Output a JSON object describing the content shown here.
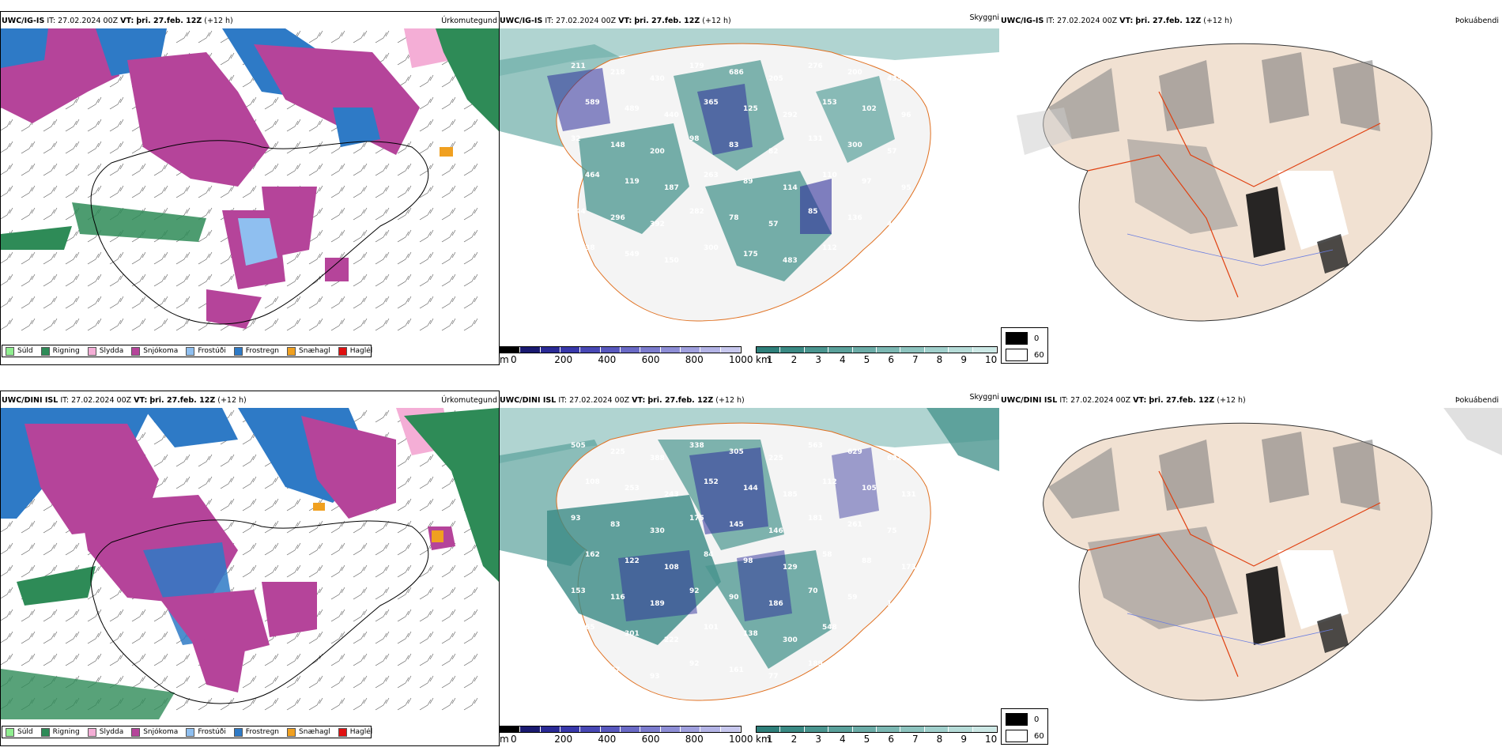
{
  "rows": [
    {
      "row_id": "igis",
      "panels": {
        "precip": {
          "model": "UWC/IG-IS",
          "it_label": "IT:",
          "it_value": "27.02.2024 00Z",
          "vt_label": "VT:",
          "vt_value": "þri. 27.feb. 12Z",
          "lead": "(+12 h)",
          "title": "Úrkomutegund"
        },
        "visibility": {
          "model": "UWC/IG-IS",
          "it_label": "IT:",
          "it_value": "27.02.2024 00Z",
          "vt_label": "VT:",
          "vt_value": "þri. 27.feb. 12Z",
          "lead": "(+12 h)",
          "title": "Skyggni",
          "numbers": [
            "211",
            "218",
            "430",
            "179",
            "686",
            "205",
            "276",
            "200",
            "433",
            "589",
            "489",
            "440",
            "365",
            "125",
            "292",
            "153",
            "102",
            "96",
            "32",
            "148",
            "200",
            "98",
            "83",
            "82",
            "131",
            "300",
            "57",
            "464",
            "119",
            "187",
            "263",
            "89",
            "114",
            "110",
            "97",
            "95",
            "144",
            "296",
            "392",
            "282",
            "78",
            "57",
            "85",
            "136",
            "430",
            "38",
            "549",
            "150",
            "300",
            "175",
            "483",
            "112",
            "100",
            "66"
          ]
        },
        "fog": {
          "model": "UWC/IG-IS",
          "it_label": "IT:",
          "it_value": "27.02.2024 00Z",
          "vt_label": "VT:",
          "vt_value": "þri. 27.feb. 12Z",
          "lead": "(+12 h)",
          "title": "Þokuábendi"
        }
      }
    },
    {
      "row_id": "dini",
      "panels": {
        "precip": {
          "model": "UWC/DINI ISL",
          "it_label": "IT:",
          "it_value": "27.02.2024 00Z",
          "vt_label": "VT:",
          "vt_value": "þri. 27.feb. 12Z",
          "lead": "(+12 h)",
          "title": "Úrkomutegund"
        },
        "visibility": {
          "model": "UWC/DINI ISL",
          "it_label": "IT:",
          "it_value": "27.02.2024 00Z",
          "vt_label": "VT:",
          "vt_value": "þri. 27.feb. 12Z",
          "lead": "(+12 h)",
          "title": "Skyggni",
          "numbers": [
            "505",
            "225",
            "388",
            "338",
            "305",
            "225",
            "563",
            "629",
            "692",
            "108",
            "253",
            "243",
            "152",
            "144",
            "185",
            "112",
            "105",
            "131",
            "93",
            "83",
            "330",
            "175",
            "145",
            "146",
            "181",
            "261",
            "75",
            "162",
            "122",
            "108",
            "84",
            "98",
            "129",
            "58",
            "88",
            "173",
            "153",
            "116",
            "189",
            "92",
            "90",
            "186",
            "70",
            "59",
            "195",
            "65",
            "301",
            "222",
            "101",
            "138",
            "300",
            "548",
            "166",
            "108",
            "52",
            "67",
            "93",
            "92",
            "161",
            "77",
            "189",
            "226"
          ]
        },
        "fog": {
          "model": "UWC/DINI ISL",
          "it_label": "IT:",
          "it_value": "27.02.2024 00Z",
          "vt_label": "VT:",
          "vt_value": "þri. 27.feb. 12Z",
          "lead": "(+12 h)",
          "title": "Þokuábendi"
        }
      }
    }
  ],
  "precip_legend": [
    {
      "label": "Súld",
      "color": "#90ee90"
    },
    {
      "label": "Rigning",
      "color": "#2e8b57"
    },
    {
      "label": "Slydda",
      "color": "#f4aed6"
    },
    {
      "label": "Snjókoma",
      "color": "#b5449a"
    },
    {
      "label": "Frostúði",
      "color": "#8fbff0"
    },
    {
      "label": "Frostregn",
      "color": "#2e7ac6"
    },
    {
      "label": "Snæhagl",
      "color": "#f0a020"
    },
    {
      "label": "Haglél",
      "color": "#e01010"
    }
  ],
  "elev_scale": {
    "unit": "m",
    "ticks": [
      "0",
      "200",
      "400",
      "600",
      "800",
      "1000"
    ],
    "colors": [
      "#000000",
      "#1a1a70",
      "#2a2a95",
      "#3838aa",
      "#4848b5",
      "#5858be",
      "#6a6ac6",
      "#7c7cce",
      "#8e8ed6",
      "#a0a0de",
      "#b4b4e6",
      "#c8c8ee"
    ]
  },
  "vis_scale": {
    "unit": "km",
    "ticks": [
      "1",
      "2",
      "3",
      "4",
      "5",
      "6",
      "7",
      "8",
      "9",
      "10"
    ],
    "colors": [
      "#2e7f7a",
      "#3a8a84",
      "#4a958f",
      "#5aa19b",
      "#6baca7",
      "#7cb8b3",
      "#8ec4bf",
      "#a1d0cc",
      "#b6dcd8",
      "#cce8e5"
    ]
  },
  "fog_legend": [
    {
      "label": "0",
      "color": "#000000"
    },
    {
      "label": "60",
      "color": "#ffffff"
    }
  ],
  "colors": {
    "snow": "#b5449a",
    "freezing_rain": "#2e7ac6",
    "freezing_drizzle": "#8fbff0",
    "rain": "#2e8b57",
    "sleet": "#f4aed6",
    "vis_teal": "#4a9a90",
    "vis_low": "#2e2e9a",
    "fog_land": "#f1e1d2",
    "roads": "#e07020"
  }
}
